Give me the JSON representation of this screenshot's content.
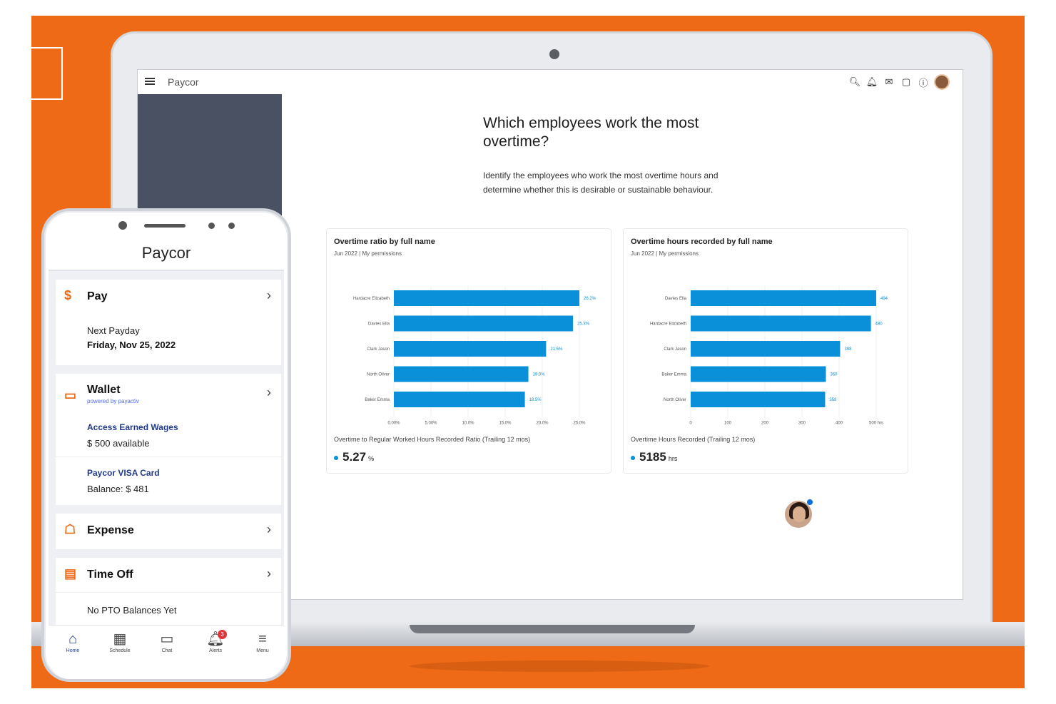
{
  "colors": {
    "brand_orange": "#ee6a16",
    "bar_blue": "#0a90d8",
    "sidebar_slate": "#4a5162"
  },
  "desktop": {
    "topbar": {
      "logo": "Paycor",
      "icons": [
        "search-icon",
        "notification-bell-icon",
        "messages-icon",
        "feedback-icon",
        "help-icon",
        "avatar"
      ]
    },
    "heading": "Which employees work the most overtime?",
    "description": "Identify the employees who work the most overtime hours and determine whether this is desirable or sustainable behaviour.",
    "card_left": {
      "title": "Overtime ratio by full name",
      "subtitle": "Jun 2022 | My permissions",
      "footer": "Overtime to Regular Worked Hours Recorded Ratio (Trailing 12 mos)",
      "metric_value": "5.27",
      "metric_unit": "%"
    },
    "card_right": {
      "title": "Overtime hours recorded by full name",
      "subtitle": "Jun 2022 | My permissions",
      "footer": "Overtime Hours Recorded (Trailing 12 mos)",
      "metric_value": "5185",
      "metric_unit": "hrs"
    }
  },
  "chart_data": [
    {
      "type": "bar",
      "orientation": "horizontal",
      "title": "Overtime ratio by full name",
      "subtitle": "Jun 2022 | My permissions",
      "categories": [
        "Hardacre Elizabeth",
        "Davies Ella",
        "Clark Jason",
        "North Oliver",
        "Baker Emma"
      ],
      "values": [
        26.2,
        25.3,
        21.5,
        19.0,
        18.5
      ],
      "value_labels": [
        "26.2%",
        "25.3%",
        "21.5%",
        "19.0%",
        "18.5%"
      ],
      "x_ticks": [
        "0.00%",
        "5.00%",
        "10.0%",
        "15.0%",
        "20.0%",
        "25.0%"
      ],
      "xlim": [
        0,
        26.2
      ],
      "xlabel": "",
      "ylabel": ""
    },
    {
      "type": "bar",
      "orientation": "horizontal",
      "title": "Overtime hours recorded by full name",
      "subtitle": "Jun 2022 | My permissions",
      "categories": [
        "Davies Ella",
        "Hardacre Elizabeth",
        "Clark Jason",
        "Baker Emma",
        "North Oliver"
      ],
      "values": [
        494,
        480,
        398,
        360,
        358
      ],
      "value_labels": [
        "494",
        "480",
        "398",
        "360",
        "358"
      ],
      "x_ticks": [
        "0",
        "100",
        "200",
        "300",
        "400",
        "500 hrs"
      ],
      "xlim": [
        0,
        494
      ],
      "xlabel": "",
      "ylabel": ""
    }
  ],
  "phone": {
    "logo": "Paycor",
    "pay": {
      "title": "Pay",
      "label": "Next Payday",
      "date": "Friday, Nov 25, 2022"
    },
    "wallet": {
      "title": "Wallet",
      "powered": "powered by payactiv",
      "earned_title": "Access Earned Wages",
      "earned_amount": "$ 500 available",
      "card_title": "Paycor VISA Card",
      "card_balance": "Balance: $ 481"
    },
    "expense": {
      "title": "Expense"
    },
    "timeoff": {
      "title": "Time Off",
      "status": "No PTO Balances Yet"
    },
    "nav": [
      {
        "label": "Home",
        "icon": "home-icon"
      },
      {
        "label": "Schedule",
        "icon": "calendar-icon"
      },
      {
        "label": "Chat",
        "icon": "chat-icon"
      },
      {
        "label": "Alerts",
        "icon": "bell-icon",
        "badge": "3"
      },
      {
        "label": "Menu",
        "icon": "menu-icon"
      }
    ]
  }
}
